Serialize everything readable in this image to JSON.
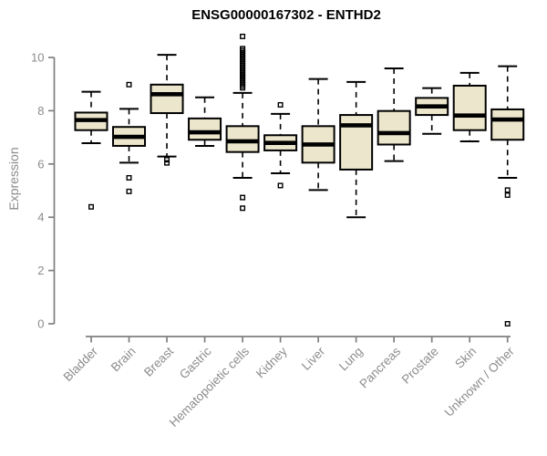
{
  "window": {
    "background_color": "#ffffff"
  },
  "chart_data": {
    "type": "boxplot",
    "title": "ENSG00000167302 - ENTHD2",
    "xlabel": "",
    "ylabel": "Expression",
    "ylim": [
      0,
      10
    ],
    "yticks": [
      0,
      2,
      4,
      6,
      8,
      10
    ],
    "grid": false,
    "legend": "none",
    "colors": {
      "box_fill": "#ece7cc",
      "box_stroke": "#000000",
      "median": "#000000",
      "whisker": "#000000",
      "outlier_stroke": "#000000",
      "axis_line": "#7f7f7f",
      "axis_text": "#8c8c8c",
      "title_text": "#000000"
    },
    "categories": [
      "Bladder",
      "Brain",
      "Breast",
      "Gastric",
      "Hematopoietic cells",
      "Kidney",
      "Liver",
      "Lung",
      "Pancreas",
      "Prostate",
      "Skin",
      "Unknown / Other"
    ],
    "series": [
      {
        "name": "Bladder",
        "whisker_low": 6.78,
        "q1": 7.27,
        "median": 7.65,
        "q3": 7.93,
        "whisker_high": 8.71,
        "outliers": [
          4.39
        ]
      },
      {
        "name": "Brain",
        "whisker_low": 6.05,
        "q1": 6.68,
        "median": 7.02,
        "q3": 7.39,
        "whisker_high": 8.07,
        "outliers": [
          8.98,
          5.48,
          4.97
        ]
      },
      {
        "name": "Breast",
        "whisker_low": 6.28,
        "q1": 7.91,
        "median": 8.62,
        "q3": 8.98,
        "whisker_high": 10.1,
        "outliers": [
          6.16,
          6.04
        ]
      },
      {
        "name": "Gastric",
        "whisker_low": 6.68,
        "q1": 6.91,
        "median": 7.19,
        "q3": 7.71,
        "whisker_high": 8.5,
        "outliers": []
      },
      {
        "name": "Hematopoietic cells",
        "whisker_low": 5.48,
        "q1": 6.45,
        "median": 6.85,
        "q3": 7.42,
        "whisker_high": 8.67,
        "outliers": [
          10.79,
          10.33,
          10.26,
          10.19,
          10.12,
          10.05,
          9.98,
          9.91,
          9.84,
          9.77,
          9.7,
          9.63,
          9.56,
          9.49,
          9.42,
          9.35,
          9.28,
          9.21,
          9.14,
          9.07,
          9.0,
          8.93,
          8.86,
          4.74,
          4.34
        ]
      },
      {
        "name": "Kidney",
        "whisker_low": 5.65,
        "q1": 6.51,
        "median": 6.79,
        "q3": 7.08,
        "whisker_high": 7.88,
        "outliers": [
          8.22,
          5.19
        ]
      },
      {
        "name": "Liver",
        "whisker_low": 5.02,
        "q1": 6.05,
        "median": 6.73,
        "q3": 7.42,
        "whisker_high": 9.19,
        "outliers": []
      },
      {
        "name": "Lung",
        "whisker_low": 4.0,
        "q1": 5.79,
        "median": 7.45,
        "q3": 7.84,
        "whisker_high": 9.08,
        "outliers": []
      },
      {
        "name": "Pancreas",
        "whisker_low": 6.11,
        "q1": 6.73,
        "median": 7.16,
        "q3": 7.99,
        "whisker_high": 9.59,
        "outliers": []
      },
      {
        "name": "Prostate",
        "whisker_low": 7.13,
        "q1": 7.84,
        "median": 8.16,
        "q3": 8.48,
        "whisker_high": 8.85,
        "outliers": []
      },
      {
        "name": "Skin",
        "whisker_low": 6.85,
        "q1": 7.27,
        "median": 7.82,
        "q3": 8.94,
        "whisker_high": 9.42,
        "outliers": []
      },
      {
        "name": "Unknown / Other",
        "whisker_low": 5.48,
        "q1": 6.91,
        "median": 7.67,
        "q3": 8.05,
        "whisker_high": 9.67,
        "outliers": [
          5.02,
          4.83,
          0.0
        ]
      }
    ]
  }
}
